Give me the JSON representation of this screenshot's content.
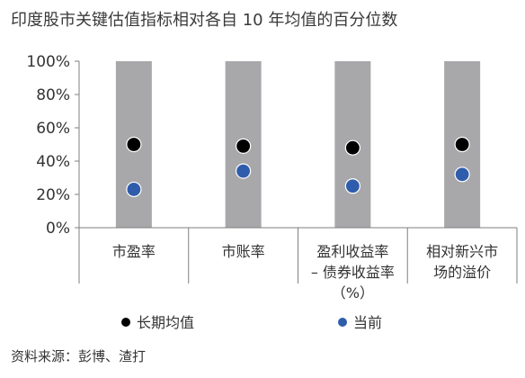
{
  "title": "印度股市关键估值指标相对各自 10 年均值的百分位数",
  "source": "资料来源：彭博、渣打",
  "chart_data": {
    "type": "scatter",
    "title": "印度股市关键估值指标相对各自 10 年均值的百分位数",
    "categories": [
      [
        "市盈率"
      ],
      [
        "市账率"
      ],
      [
        "盈利收益率",
        "– 债券收益率",
        "（%）"
      ],
      [
        "相对新兴市",
        "场的溢价"
      ]
    ],
    "ylim": [
      0,
      100
    ],
    "yticks": [
      0,
      20,
      40,
      60,
      80,
      100
    ],
    "ytick_labels": [
      "0%",
      "20%",
      "40%",
      "60%",
      "80%",
      "100%"
    ],
    "range_bar": {
      "from": 0,
      "to": 100,
      "color": "#a8a8ab"
    },
    "series": [
      {
        "name": "长期均值",
        "color": "#000000",
        "values": [
          50,
          49,
          48,
          50
        ]
      },
      {
        "name": "当前",
        "color": "#2f5dab",
        "values": [
          23,
          34,
          25,
          32
        ]
      }
    ],
    "legend_position": "bottom",
    "grid": false
  }
}
